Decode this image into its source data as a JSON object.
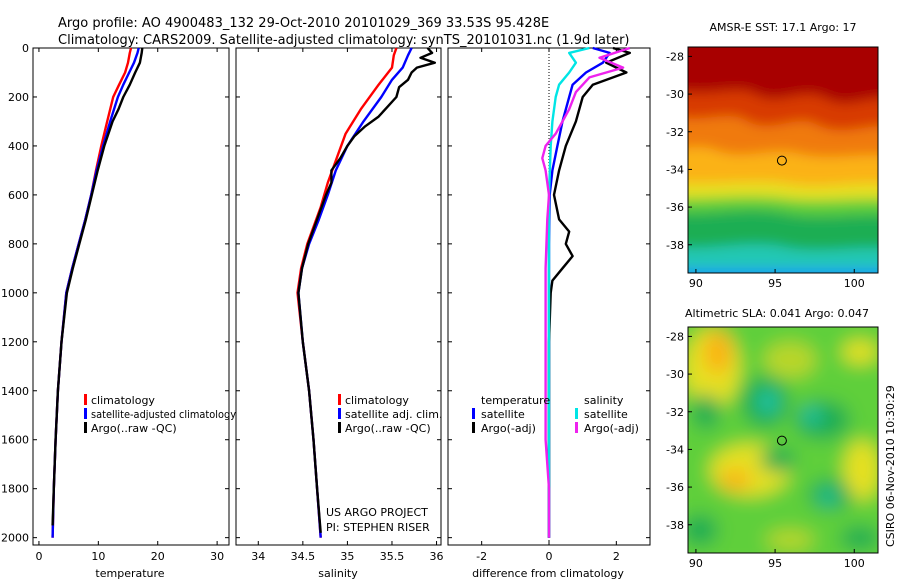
{
  "figure": {
    "title_line1": "Argo profile: AO 4900483_132 29-Oct-2010 20101029_369 33.53S 95.428E",
    "title_line2": "Climatology: CARS2009. Satellite-adjusted climatology: synTS_20101031.nc (1.9d later)",
    "credit_line1": "US ARGO PROJECT",
    "credit_line2": "PI: STEPHEN RISER",
    "side_stamp": "CSIRO 06-Nov-2010 10:30:29",
    "colors": {
      "climatology": "#ff0000",
      "satellite": "#0000ff",
      "argo": "#000000",
      "cyan": "#00e5e5",
      "magenta": "#ee22ee"
    }
  },
  "chart_data": [
    {
      "type": "line",
      "id": "temperature",
      "xlabel": "temperature",
      "xlim": [
        -1,
        32
      ],
      "ylim": [
        0,
        2030
      ],
      "xticks": [
        0,
        10,
        20,
        30
      ],
      "yticks": [
        0,
        200,
        400,
        600,
        800,
        1000,
        1200,
        1400,
        1600,
        1800,
        2000
      ],
      "yreversed": true,
      "legend": [
        "climatology",
        "satellite-adjusted climatology",
        "Argo(..raw -QC)"
      ],
      "series": [
        {
          "name": "climatology",
          "color": "#ff0000",
          "depth": [
            0,
            20,
            60,
            100,
            150,
            200,
            300,
            400,
            500,
            600,
            700,
            800,
            900,
            1000,
            1200,
            1400,
            1600,
            1800,
            2000
          ],
          "values": [
            15.5,
            15.3,
            15.0,
            14.5,
            13.5,
            12.5,
            11.5,
            10.5,
            9.6,
            8.8,
            7.8,
            6.7,
            5.6,
            4.6,
            3.8,
            3.2,
            2.8,
            2.5,
            2.3
          ]
        },
        {
          "name": "satellite-adjusted climatology",
          "color": "#0000ff",
          "depth": [
            0,
            20,
            60,
            100,
            150,
            200,
            300,
            400,
            500,
            600,
            700,
            800,
            900,
            1000,
            1200,
            1400,
            1600,
            1800,
            2000
          ],
          "values": [
            16.8,
            16.6,
            16.0,
            15.2,
            14.2,
            13.3,
            12.0,
            10.8,
            9.7,
            8.8,
            7.8,
            6.7,
            5.6,
            4.6,
            3.8,
            3.2,
            2.8,
            2.5,
            2.3
          ]
        },
        {
          "name": "Argo(..raw -QC)",
          "color": "#000000",
          "depth": [
            0,
            20,
            60,
            100,
            150,
            200,
            250,
            300,
            400,
            500,
            600,
            700,
            800,
            900,
            1000,
            1200,
            1400,
            1600,
            1800,
            1950
          ],
          "values": [
            17.4,
            17.3,
            17.0,
            16.2,
            15.3,
            14.2,
            13.4,
            12.4,
            11.0,
            9.9,
            8.9,
            7.9,
            6.8,
            5.7,
            4.7,
            3.8,
            3.2,
            2.8,
            2.5,
            2.3
          ]
        }
      ]
    },
    {
      "type": "line",
      "id": "salinity",
      "xlabel": "salinity",
      "xlim": [
        33.75,
        36.05
      ],
      "ylim": [
        0,
        2030
      ],
      "xticks": [
        34,
        34.5,
        35,
        35.5,
        36
      ],
      "yticks": [
        0,
        200,
        400,
        600,
        800,
        1000,
        1200,
        1400,
        1600,
        1800,
        2000
      ],
      "yreversed": true,
      "legend": [
        "climatology",
        "satellite adj. clim.",
        "Argo(..raw -QC)"
      ],
      "series": [
        {
          "name": "climatology",
          "color": "#ff0000",
          "depth": [
            0,
            30,
            80,
            150,
            250,
            350,
            450,
            550,
            650,
            800,
            900,
            1000,
            1200,
            1400,
            1600,
            1800,
            2000
          ],
          "values": [
            35.55,
            35.52,
            35.5,
            35.35,
            35.15,
            34.98,
            34.88,
            34.78,
            34.7,
            34.55,
            34.48,
            34.44,
            34.5,
            34.57,
            34.62,
            34.66,
            34.7
          ]
        },
        {
          "name": "satellite adj. clim.",
          "color": "#0000ff",
          "depth": [
            0,
            30,
            80,
            130,
            200,
            300,
            400,
            500,
            600,
            700,
            800,
            900,
            1000,
            1200,
            1400,
            1600,
            1800,
            2000
          ],
          "values": [
            35.72,
            35.68,
            35.62,
            35.5,
            35.38,
            35.18,
            35.0,
            34.87,
            34.78,
            34.68,
            34.57,
            34.49,
            34.45,
            34.5,
            34.57,
            34.62,
            34.66,
            34.7
          ]
        },
        {
          "name": "Argo(..raw -QC)",
          "color": "#000000",
          "depth": [
            0,
            20,
            40,
            60,
            80,
            100,
            130,
            160,
            200,
            240,
            280,
            320,
            360,
            400,
            450,
            500,
            550,
            600,
            700,
            800,
            900,
            1000,
            1200,
            1400,
            1600,
            1800,
            1980
          ],
          "values": [
            35.9,
            35.95,
            35.82,
            35.98,
            35.78,
            35.72,
            35.68,
            35.58,
            35.55,
            35.45,
            35.35,
            35.2,
            35.08,
            35.0,
            34.92,
            34.82,
            34.82,
            34.76,
            34.66,
            34.56,
            34.49,
            34.45,
            34.5,
            34.57,
            34.62,
            34.66,
            34.7
          ]
        }
      ]
    },
    {
      "type": "line",
      "id": "difference",
      "xlabel": "difference from climatology",
      "xlim": [
        -3.0,
        3.0
      ],
      "ylim": [
        0,
        2030
      ],
      "xticks": [
        -2,
        0,
        2
      ],
      "yticks": [
        0,
        200,
        400,
        600,
        800,
        1000,
        1200,
        1400,
        1600,
        1800,
        2000
      ],
      "yreversed": true,
      "legend_headers": [
        "temperature",
        "salinity"
      ],
      "legend": [
        "satellite",
        "Argo(-adj)",
        "satellite",
        "Argo(-adj)"
      ],
      "series": [
        {
          "name": "temperature satellite",
          "color": "#0000ff",
          "depth": [
            0,
            20,
            60,
            100,
            150,
            200,
            300,
            400,
            500,
            600,
            800,
            1000,
            1200,
            1400,
            1600,
            1800,
            2000
          ],
          "values": [
            1.3,
            1.8,
            1.6,
            1.1,
            0.7,
            0.6,
            0.4,
            0.25,
            0.1,
            0.02,
            0.0,
            0.0,
            0.0,
            0.0,
            0.0,
            0.0,
            0.0
          ]
        },
        {
          "name": "temperature Argo(-adj)",
          "color": "#000000",
          "depth": [
            0,
            20,
            60,
            100,
            150,
            200,
            300,
            400,
            500,
            600,
            700,
            750,
            800,
            850,
            900,
            950,
            1000,
            1200,
            1400,
            1600,
            1800,
            2000
          ],
          "values": [
            1.9,
            2.4,
            1.7,
            2.3,
            1.3,
            1.0,
            0.8,
            0.5,
            0.3,
            0.15,
            0.3,
            0.6,
            0.5,
            0.7,
            0.4,
            0.1,
            0.05,
            0.0,
            0.0,
            0.0,
            0.0,
            0.0
          ]
        },
        {
          "name": "salinity satellite",
          "color": "#00e5e5",
          "depth": [
            0,
            20,
            60,
            100,
            150,
            200,
            300,
            400,
            600,
            800,
            1000,
            1200,
            1400,
            1600,
            1800,
            2000
          ],
          "values": [
            1.2,
            0.6,
            0.8,
            0.6,
            0.3,
            0.2,
            0.1,
            0.05,
            0.0,
            0.0,
            0.0,
            0.0,
            0.0,
            0.0,
            0.0,
            0.0
          ]
        },
        {
          "name": "salinity Argo(-adj)",
          "color": "#ee22ee",
          "depth": [
            0,
            40,
            80,
            120,
            180,
            250,
            300,
            350,
            400,
            450,
            500,
            600,
            700,
            900,
            1000,
            1200,
            1400,
            1600,
            1800,
            2000
          ],
          "values": [
            2.4,
            1.5,
            2.2,
            1.2,
            0.8,
            0.6,
            0.4,
            0.2,
            -0.1,
            -0.2,
            -0.1,
            0.0,
            -0.05,
            -0.1,
            -0.1,
            -0.1,
            -0.1,
            -0.1,
            0.0,
            0.0
          ]
        }
      ]
    },
    {
      "type": "heatmap",
      "id": "sst-map",
      "title": "AMSR-E SST: 17.1  Argo: 17",
      "xticks": [
        90,
        95,
        100
      ],
      "yticks": [
        -28,
        -30,
        -32,
        -34,
        -36,
        -38
      ],
      "xlim": [
        89.5,
        101.5
      ],
      "ylim": [
        -39.5,
        -27.5
      ],
      "marker": {
        "lon": 95.43,
        "lat": -33.53
      }
    },
    {
      "type": "heatmap",
      "id": "sla-map",
      "title": "Altimetric SLA: 0.041  Argo: 0.047",
      "xticks": [
        90,
        95,
        100
      ],
      "yticks": [
        -28,
        -30,
        -32,
        -34,
        -36,
        -38
      ],
      "xlim": [
        89.5,
        101.5
      ],
      "ylim": [
        -39.5,
        -27.5
      ],
      "marker": {
        "lon": 95.43,
        "lat": -33.53
      }
    }
  ]
}
